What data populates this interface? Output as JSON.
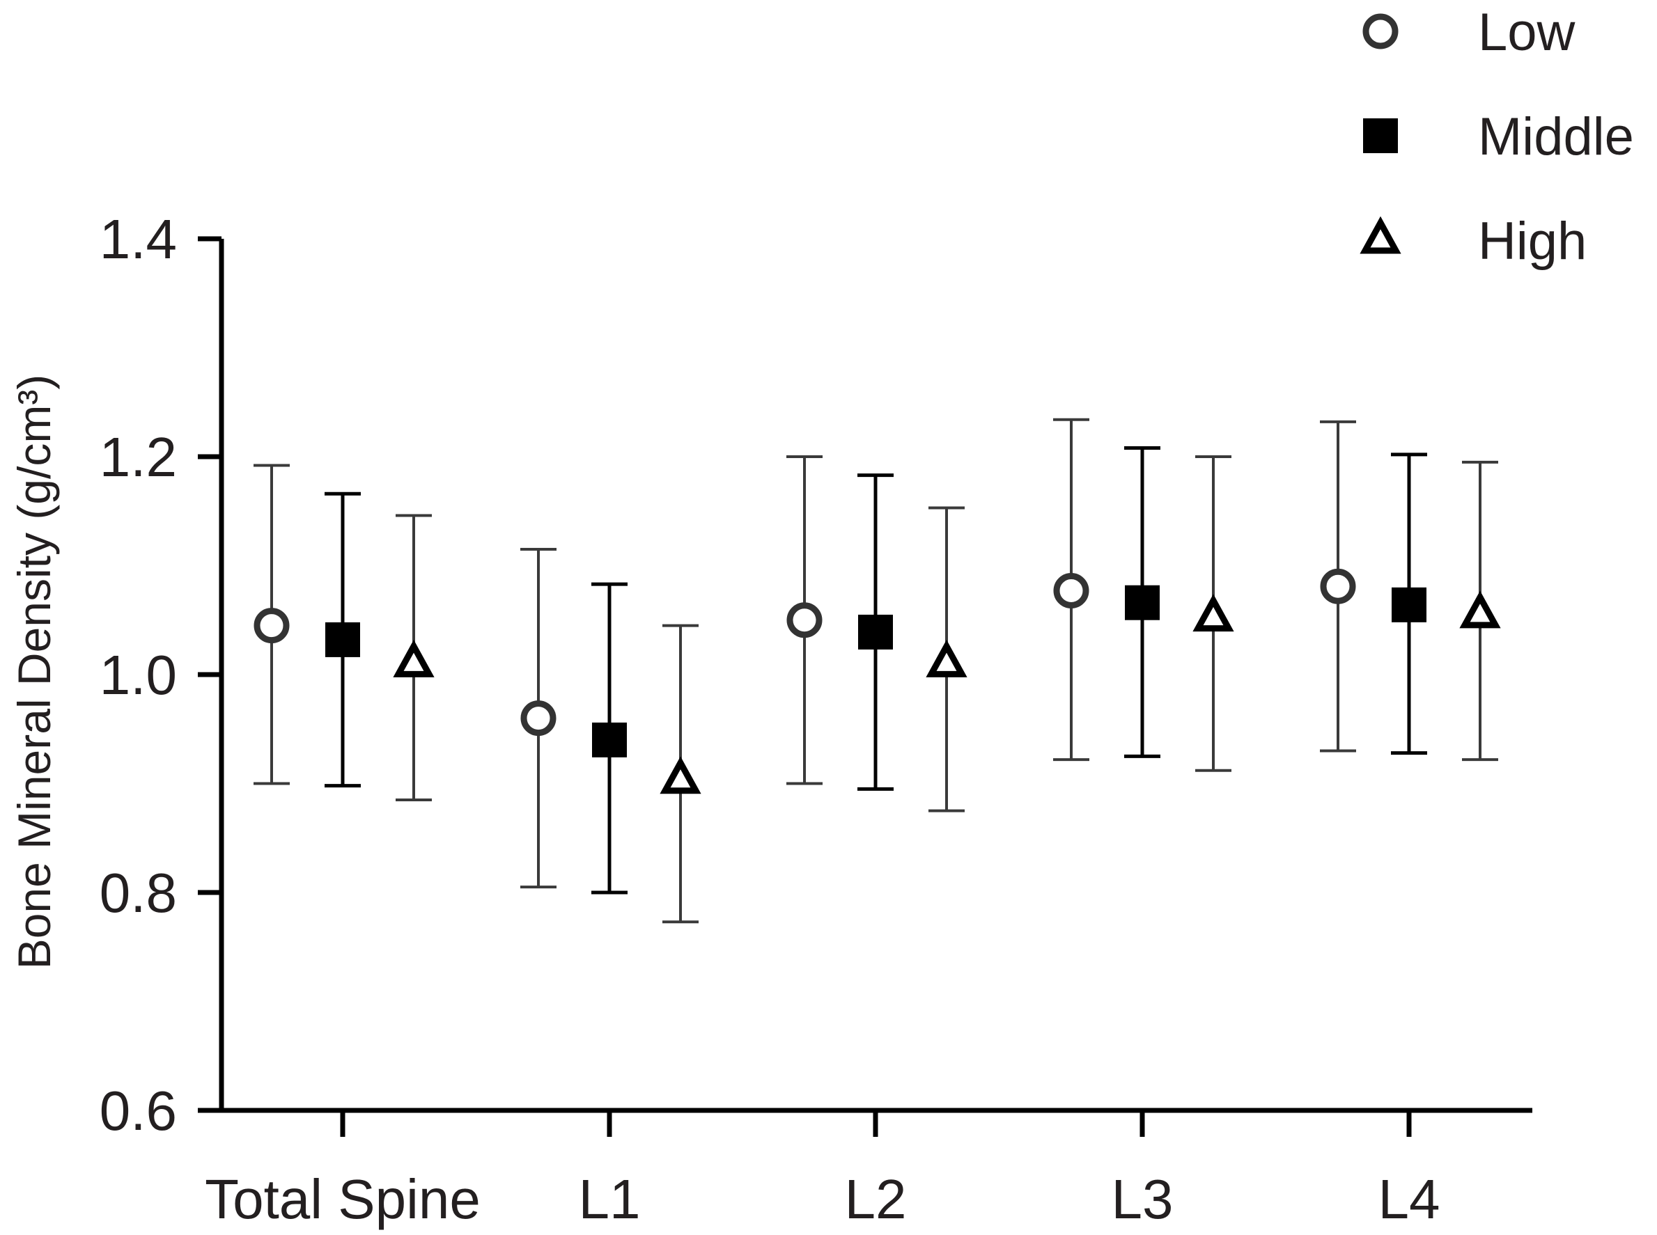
{
  "chart_data": {
    "type": "scatter",
    "ylabel": "Bone Mineral Density (g/cm³)",
    "xlabel": "",
    "ylim": [
      0.6,
      1.4
    ],
    "yticks": [
      "0.6",
      "0.8",
      "1.0",
      "1.2",
      "1.4"
    ],
    "categories": [
      "Total Spine",
      "L1",
      "L2",
      "L3",
      "L4"
    ],
    "legend_position": "top-right",
    "error_bars": true,
    "series": [
      {
        "name": "Low",
        "marker": "open-circle",
        "values": [
          1.045,
          0.96,
          1.05,
          1.077,
          1.081
        ],
        "err_low": [
          0.9,
          0.805,
          0.9,
          0.922,
          0.93
        ],
        "err_high": [
          1.192,
          1.115,
          1.2,
          1.234,
          1.232
        ]
      },
      {
        "name": "Middle",
        "marker": "filled-square",
        "values": [
          1.032,
          0.94,
          1.039,
          1.066,
          1.064
        ],
        "err_low": [
          0.898,
          0.8,
          0.895,
          0.925,
          0.928
        ],
        "err_high": [
          1.166,
          1.083,
          1.183,
          1.208,
          1.202
        ]
      },
      {
        "name": "High",
        "marker": "open-triangle",
        "values": [
          1.01,
          0.903,
          1.01,
          1.052,
          1.055
        ],
        "err_low": [
          0.885,
          0.773,
          0.875,
          0.912,
          0.922
        ],
        "err_high": [
          1.146,
          1.045,
          1.153,
          1.2,
          1.195
        ]
      }
    ],
    "colors": {
      "axis": "#000000",
      "marker": "#000000",
      "low_marker": "#333333",
      "text": "#231f20"
    }
  }
}
